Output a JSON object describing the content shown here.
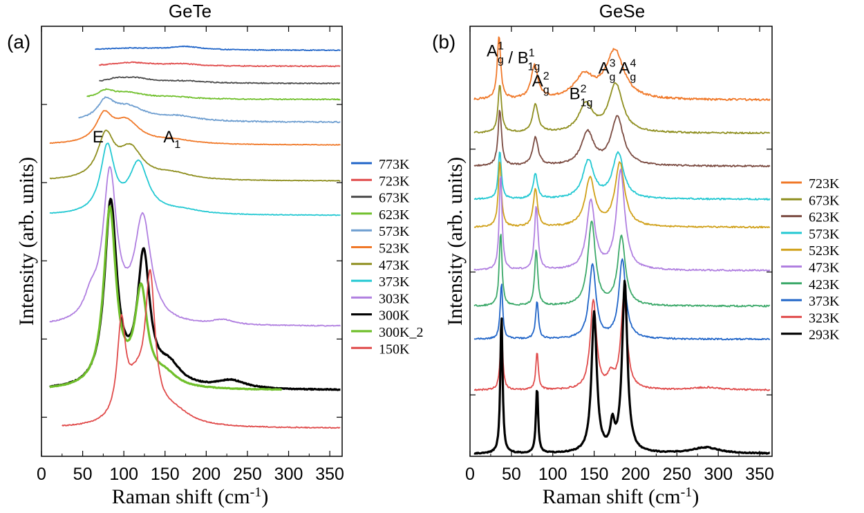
{
  "colors": {
    "773K": "#1f64c8",
    "723K": "#e04a4a",
    "673K": "#4a4a4a",
    "623K": "#6fbf2a",
    "573K": "#6e9ed0",
    "523K": "#f07828",
    "473K": "#8e8e1e",
    "373K": "#22c8d2",
    "303K": "#b07fe0",
    "300K": "#000000",
    "300K_2": "#6fbf2a",
    "150K": "#e04a4a",
    "gese_723K": "#f07828",
    "gese_673K": "#8e8e1e",
    "gese_623K": "#7a4a40",
    "gese_573K": "#22c8d2",
    "gese_523K": "#d0a018",
    "gese_473K": "#b07fe0",
    "gese_423K": "#3aa868",
    "gese_373K": "#1f64c8",
    "gese_323K": "#e04a4a",
    "gese_293K": "#000000"
  },
  "chart_data": [
    {
      "type": "line",
      "title": "GeTe",
      "panel_label": "(a)",
      "xlabel_main": "Raman shift (cm",
      "xlabel_sup": "-1",
      "xlabel_close": ")",
      "ylabel": "Intensity (arb. units)",
      "xlim": [
        0,
        365
      ],
      "xticks": [
        0,
        50,
        100,
        150,
        200,
        250,
        300,
        350
      ],
      "grid": false,
      "legend_position": "right",
      "annotations": [
        {
          "text": "E",
          "sub": "",
          "x": 62,
          "y": 0.73
        },
        {
          "text": "A",
          "sub": "1",
          "x": 148,
          "y": 0.73
        }
      ],
      "series": [
        {
          "name": "773K",
          "color_key": "773K",
          "offset": 5.25,
          "peaks": [
            [
              110,
              45,
              0.05
            ],
            [
              175,
              22,
              0.08
            ]
          ],
          "base": 0.0,
          "noise": 0.01,
          "xstart": 65
        },
        {
          "name": "723K",
          "color_key": "723K",
          "offset": 4.85,
          "peaks": [
            [
              110,
              30,
              0.09
            ],
            [
              170,
              22,
              0.05
            ]
          ],
          "base": 0.0,
          "noise": 0.012,
          "xstart": 70
        },
        {
          "name": "673K",
          "color_key": "673K",
          "offset": 4.42,
          "peaks": [
            [
              90,
              15,
              0.08
            ],
            [
              115,
              25,
              0.12
            ],
            [
              175,
              30,
              0.05
            ]
          ],
          "base": 0.0,
          "noise": 0.012,
          "xstart": 70
        },
        {
          "name": "623K",
          "color_key": "623K",
          "offset": 4.02,
          "peaks": [
            [
              78,
              12,
              0.18
            ],
            [
              105,
              25,
              0.15
            ],
            [
              160,
              30,
              0.05
            ]
          ],
          "base": 0.0,
          "noise": 0.012,
          "xstart": 55
        },
        {
          "name": "573K",
          "color_key": "573K",
          "offset": 3.45,
          "peaks": [
            [
              78,
              12,
              0.45
            ],
            [
              105,
              25,
              0.35
            ],
            [
              165,
              30,
              0.12
            ]
          ],
          "base": 0.0,
          "noise": 0.015,
          "xstart": 45
        },
        {
          "name": "523K",
          "color_key": "523K",
          "offset": 2.88,
          "peaks": [
            [
              76,
              12,
              0.65
            ],
            [
              103,
              20,
              0.55
            ],
            [
              160,
              30,
              0.1
            ]
          ],
          "base": 0.0,
          "noise": 0.008,
          "xstart": 10
        },
        {
          "name": "473K",
          "color_key": "473K",
          "offset": 1.98,
          "peaks": [
            [
              78,
              12,
              1.05
            ],
            [
              108,
              18,
              0.75
            ],
            [
              160,
              28,
              0.15
            ]
          ],
          "base": 0.0,
          "noise": 0.008,
          "xstart": 10
        },
        {
          "name": "373K",
          "color_key": "373K",
          "offset": 1.12,
          "peaks": [
            [
              80,
              10,
              1.65
            ],
            [
              118,
              14,
              1.25
            ],
            [
              170,
              30,
              0.1
            ]
          ],
          "base": 0.0,
          "noise": 0.008,
          "xstart": 10
        },
        {
          "name": "303K",
          "color_key": "303K",
          "offset": -1.65,
          "peaks": [
            [
              83,
              10,
              3.7
            ],
            [
              123,
              12,
              2.6
            ],
            [
              220,
              15,
              0.12
            ],
            [
              60,
              10,
              0.5
            ]
          ],
          "base": 0.0,
          "noise": 0.012,
          "xstart": 10
        },
        {
          "name": "300K",
          "color_key": "300K",
          "offset": -3.25,
          "peaks": [
            [
              84,
              9,
              4.6
            ],
            [
              124,
              9,
              3.2
            ],
            [
              155,
              18,
              0.5
            ],
            [
              230,
              22,
              0.2
            ]
          ],
          "base": 0.0,
          "noise": 0.012,
          "xstart": 10,
          "width": 3.2
        },
        {
          "name": "300K_2",
          "color_key": "300K_2",
          "offset": -3.25,
          "peaks": [
            [
              83,
              9,
              4.45
            ],
            [
              121,
              9,
              2.35
            ],
            [
              150,
              18,
              0.3
            ]
          ],
          "base": 0.0,
          "noise": 0.008,
          "xstart": 10,
          "xend": 292,
          "width": 3.2
        },
        {
          "name": "150K",
          "color_key": "150K",
          "offset": -4.2,
          "peaks": [
            [
              97,
              6,
              2.3
            ],
            [
              132,
              7,
              3.35
            ],
            [
              115,
              15,
              0.9
            ],
            [
              160,
              25,
              0.35
            ]
          ],
          "base": 0.0,
          "noise": 0.012,
          "xstart": 25
        }
      ],
      "ylim": [
        -4.9,
        5.85
      ]
    },
    {
      "type": "line",
      "title": "GeSe",
      "panel_label": "(b)",
      "xlabel_main": "Raman shift (cm",
      "xlabel_sup": "-1",
      "xlabel_close": ")",
      "ylabel": "Intensity (arb. units)",
      "xlim": [
        0,
        365
      ],
      "xticks": [
        0,
        50,
        100,
        150,
        200,
        250,
        300,
        350
      ],
      "grid": false,
      "legend_position": "right",
      "annotations": [
        {
          "text": "A",
          "sup": "1",
          "sub": "g",
          "x": 20,
          "y": 0.93,
          "extra": " / B",
          "extra_sup": "1",
          "extra_sub": "1g"
        },
        {
          "text": "A",
          "sup": "2",
          "sub": "g",
          "x": 75,
          "y": 0.86
        },
        {
          "text": "B",
          "sup": "2",
          "sub": "1g",
          "x": 120,
          "y": 0.83
        },
        {
          "text": "A",
          "sup": "3",
          "sub": "g",
          "x": 155,
          "y": 0.89
        },
        {
          "text": "A",
          "sup": "4",
          "sub": "g",
          "x": 180,
          "y": 0.89
        }
      ],
      "series": [
        {
          "name": "723K",
          "color_key": "gese_723K",
          "offset": 4.25,
          "peaks": [
            [
              35,
              2.5,
              1.25
            ],
            [
              78,
              5,
              0.65
            ],
            [
              138,
              14,
              0.45
            ],
            [
              175,
              13,
              0.95
            ]
          ],
          "noise": 0.02,
          "xstart": 5
        },
        {
          "name": "673K",
          "color_key": "gese_673K",
          "offset": 3.6,
          "peaks": [
            [
              36,
              2.5,
              0.95
            ],
            [
              79,
              4,
              0.55
            ],
            [
              140,
              10,
              0.55
            ],
            [
              176,
              10,
              0.95
            ]
          ],
          "noise": 0.015,
          "xstart": 5
        },
        {
          "name": "623K",
          "color_key": "gese_623K",
          "offset": 2.95,
          "peaks": [
            [
              36,
              2.5,
              1.1
            ],
            [
              79,
              4,
              0.55
            ],
            [
              142,
              9,
              0.65
            ],
            [
              178,
              9,
              0.95
            ]
          ],
          "noise": 0.015,
          "xstart": 5
        },
        {
          "name": "573K",
          "color_key": "gese_573K",
          "offset": 2.3,
          "peaks": [
            [
              36,
              2.2,
              0.95
            ],
            [
              79,
              3,
              0.5
            ],
            [
              143,
              8,
              0.75
            ],
            [
              179,
              8,
              0.9
            ]
          ],
          "noise": 0.015,
          "xstart": 5
        },
        {
          "name": "523K",
          "color_key": "gese_523K",
          "offset": 1.75,
          "peaks": [
            [
              36,
              2.2,
              1.3
            ],
            [
              79,
              3,
              0.75
            ],
            [
              145,
              7,
              0.95
            ],
            [
              181,
              7,
              1.25
            ]
          ],
          "noise": 0.015,
          "xstart": 5
        },
        {
          "name": "473K",
          "color_key": "gese_473K",
          "offset": 0.9,
          "peaks": [
            [
              37,
              2,
              1.9
            ],
            [
              80,
              2.5,
              1.25
            ],
            [
              146,
              6,
              1.35
            ],
            [
              182,
              6,
              1.95
            ]
          ],
          "noise": 0.015,
          "xstart": 5
        },
        {
          "name": "423K",
          "color_key": "gese_423K",
          "offset": 0.2,
          "peaks": [
            [
              37,
              2,
              1.45
            ],
            [
              80,
              2.2,
              1.1
            ],
            [
              147,
              5.5,
              1.65
            ],
            [
              183,
              5.5,
              1.35
            ]
          ],
          "noise": 0.015,
          "xstart": 5
        },
        {
          "name": "373K",
          "color_key": "gese_373K",
          "offset": -0.45,
          "peaks": [
            [
              38,
              1.8,
              1.1
            ],
            [
              81,
              2,
              0.75
            ],
            [
              148,
              5,
              1.45
            ],
            [
              184,
              5,
              1.55
            ]
          ],
          "noise": 0.015,
          "xstart": 5
        },
        {
          "name": "323K",
          "color_key": "gese_323K",
          "offset": -1.45,
          "peaks": [
            [
              38,
              1.8,
              1.25
            ],
            [
              81,
              1.8,
              0.75
            ],
            [
              149,
              4.5,
              1.75
            ],
            [
              186,
              4.5,
              1.8
            ],
            [
              170,
              4,
              0.25
            ],
            [
              285,
              20,
              0.05
            ]
          ],
          "noise": 0.015,
          "xstart": 5
        },
        {
          "name": "293K",
          "color_key": "gese_293K",
          "offset": -2.7,
          "peaks": [
            [
              38,
              1.6,
              2.75
            ],
            [
              81,
              1.6,
              1.3
            ],
            [
              150,
              3.8,
              2.75
            ],
            [
              187,
              3.8,
              3.35
            ],
            [
              172,
              3,
              0.5
            ],
            [
              285,
              20,
              0.12
            ]
          ],
          "noise": 0.01,
          "xstart": 5,
          "width": 3.2
        }
      ],
      "ylim": [
        -2.75,
        5.7
      ]
    }
  ]
}
